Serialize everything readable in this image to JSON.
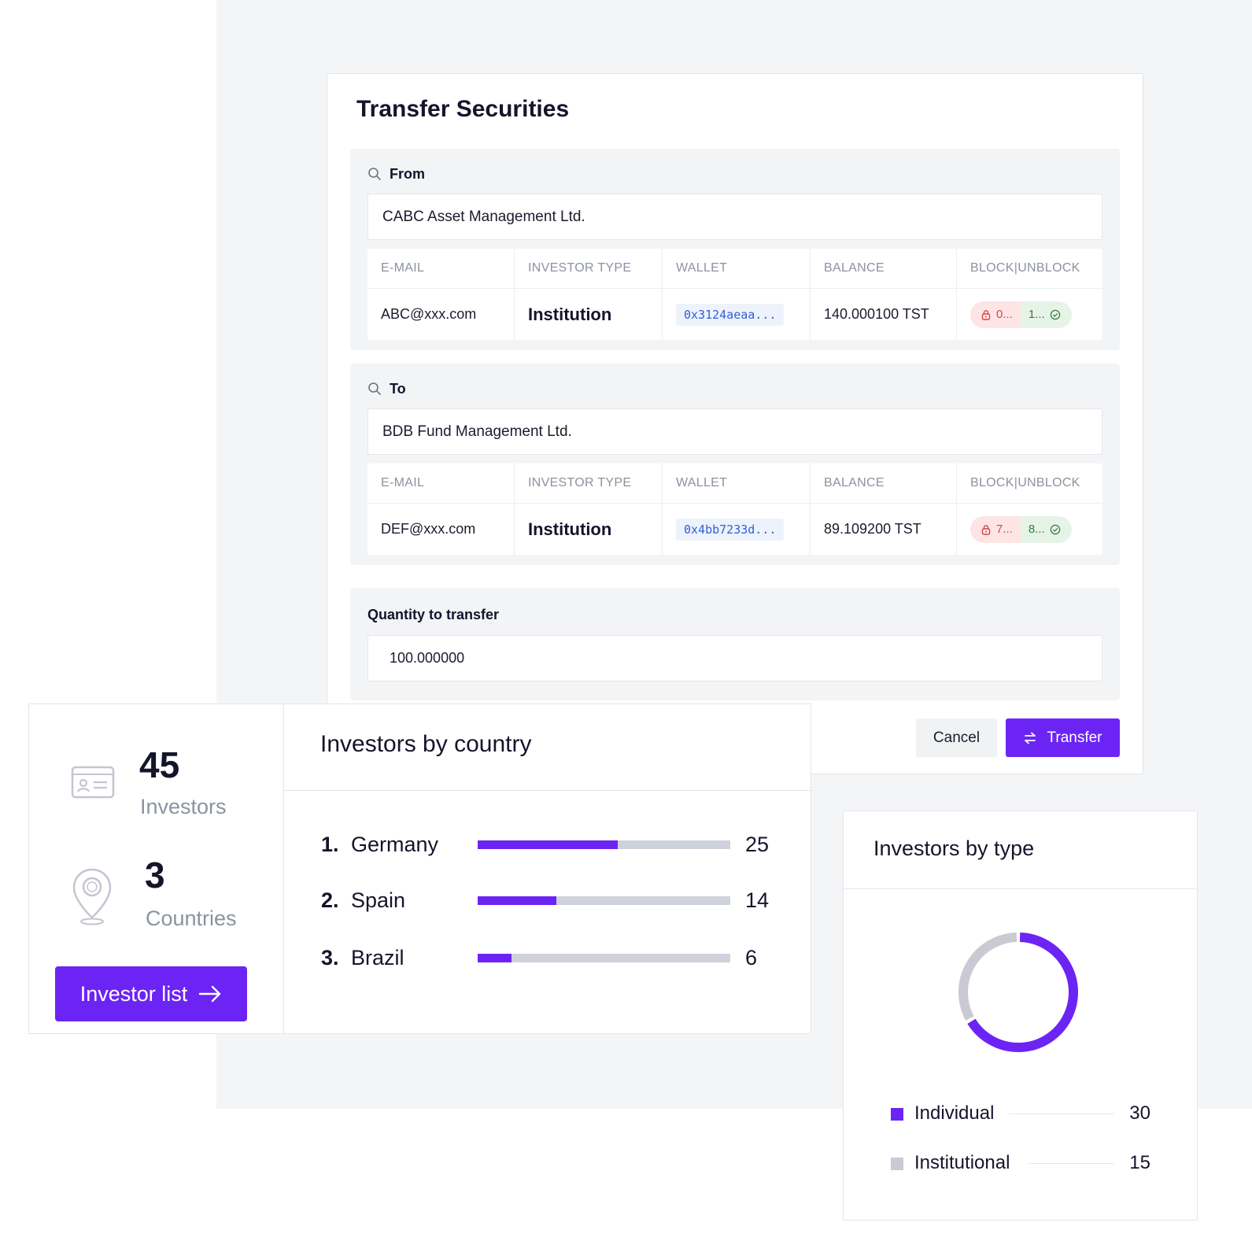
{
  "transfer": {
    "title": "Transfer Securities",
    "headers": [
      "E-MAIL",
      "INVESTOR TYPE",
      "WALLET",
      "BALANCE",
      "BLOCK|UNBLOCK"
    ],
    "from": {
      "label": "From",
      "name": "CABC Asset Management Ltd.",
      "email": "ABC@xxx.com",
      "investor_type": "Institution",
      "wallet": "0x3124aeaa...",
      "balance": "140.000100 TST",
      "blocked": "0...",
      "unblocked": "1..."
    },
    "to": {
      "label": "To",
      "name": "BDB Fund Management Ltd.",
      "email": "DEF@xxx.com",
      "investor_type": "Institution",
      "wallet": "0x4bb7233d...",
      "balance": "89.109200 TST",
      "blocked": "7...",
      "unblocked": "8..."
    },
    "quantity_label": "Quantity to transfer",
    "quantity_value": "100.000000",
    "cancel_label": "Cancel",
    "transfer_label": "Transfer"
  },
  "stats": {
    "investors_count": "45",
    "investors_label": "Investors",
    "countries_count": "3",
    "countries_label": "Countries",
    "button_label": "Investor list"
  },
  "by_country": {
    "title": "Investors by country",
    "max": 45,
    "rows": [
      {
        "rank": "1.",
        "country": "Germany",
        "count": 25
      },
      {
        "rank": "2.",
        "country": "Spain",
        "count": 14
      },
      {
        "rank": "3.",
        "country": "Brazil",
        "count": 6
      }
    ]
  },
  "by_type": {
    "title": "Investors by type",
    "items": [
      {
        "label": "Individual",
        "value": 30,
        "color": "#6c24f5"
      },
      {
        "label": "Institutional",
        "value": 15,
        "color": "#c9cad3"
      }
    ]
  },
  "colors": {
    "accent": "#6c24f5",
    "track": "#cfd1dc"
  },
  "chart_data": [
    {
      "type": "bar",
      "title": "Investors by country",
      "categories": [
        "Germany",
        "Spain",
        "Brazil"
      ],
      "values": [
        25,
        14,
        6
      ]
    },
    {
      "type": "pie",
      "title": "Investors by type",
      "categories": [
        "Individual",
        "Institutional"
      ],
      "values": [
        30,
        15
      ]
    }
  ]
}
